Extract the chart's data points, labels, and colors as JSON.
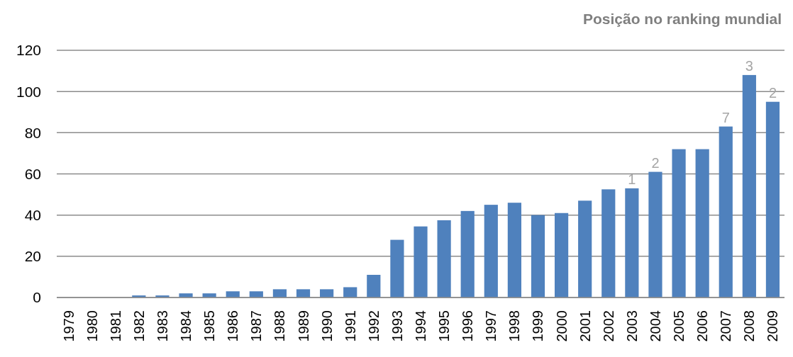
{
  "chart_data": {
    "type": "bar",
    "title": "Posição no ranking mundial",
    "categories": [
      "1979",
      "1980",
      "1981",
      "1982",
      "1983",
      "1984",
      "1985",
      "1986",
      "1987",
      "1988",
      "1989",
      "1990",
      "1991",
      "1992",
      "1993",
      "1994",
      "1995",
      "1996",
      "1997",
      "1998",
      "1999",
      "2000",
      "2001",
      "2002",
      "2003",
      "2004",
      "2005",
      "2006",
      "2007",
      "2008",
      "2009"
    ],
    "values": [
      0,
      0,
      0,
      1,
      1,
      2,
      2,
      3,
      3,
      4,
      4,
      4,
      5,
      11,
      28,
      34.5,
      37.5,
      42,
      45,
      46,
      40,
      41,
      47,
      52.5,
      53,
      61,
      72,
      72,
      83,
      108,
      95
    ],
    "color": "#4f81bd",
    "ylim": [
      0,
      120
    ],
    "yticks": [
      0,
      20,
      40,
      60,
      80,
      100,
      120
    ],
    "grid": "y",
    "annotations": [
      {
        "text": "1",
        "x": "2003",
        "y": 53
      },
      {
        "text": "2",
        "x": "2004",
        "y": 61
      },
      {
        "text": "7",
        "x": "2007",
        "y": 83
      },
      {
        "text": "3",
        "x": "2008",
        "y": 108
      },
      {
        "text": "2",
        "x": "2009",
        "y": 95
      }
    ]
  }
}
